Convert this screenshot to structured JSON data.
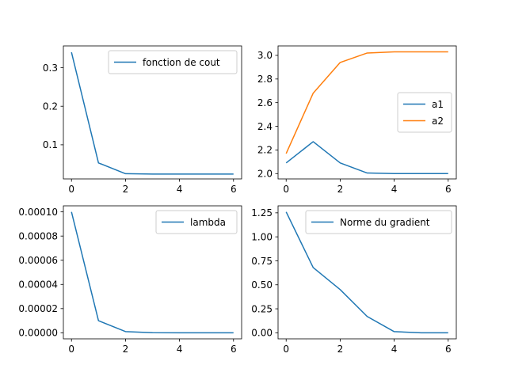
{
  "chart_data": [
    {
      "type": "line",
      "x": [
        0,
        1,
        2,
        3,
        4,
        5,
        6
      ],
      "xticks": [
        "0",
        "2",
        "4",
        "6"
      ],
      "yticks": [
        "0.1",
        "0.2",
        "0.3"
      ],
      "xlim": [
        -0.3,
        6.3
      ],
      "ylim": [
        0.0115,
        0.3565
      ],
      "grid": false,
      "legend_position": "upper-right",
      "series": [
        {
          "name": "fonction de cout",
          "color": "#1f77b4",
          "values": [
            0.34,
            0.053,
            0.025,
            0.024,
            0.024,
            0.024,
            0.024
          ]
        }
      ]
    },
    {
      "type": "line",
      "x": [
        0,
        1,
        2,
        3,
        4,
        5,
        6
      ],
      "xticks": [
        "0",
        "2",
        "4",
        "6"
      ],
      "yticks": [
        "2.0",
        "2.2",
        "2.4",
        "2.6",
        "2.8",
        "3.0"
      ],
      "xlim": [
        -0.3,
        6.3
      ],
      "ylim": [
        1.955,
        3.08
      ],
      "grid": false,
      "legend_position": "center-right",
      "series": [
        {
          "name": "a1",
          "color": "#1f77b4",
          "values": [
            2.09,
            2.27,
            2.09,
            2.005,
            2.0,
            2.0,
            2.0
          ]
        },
        {
          "name": "a2",
          "color": "#ff7f0e",
          "values": [
            2.17,
            2.68,
            2.94,
            3.02,
            3.03,
            3.03,
            3.03
          ]
        }
      ]
    },
    {
      "type": "line",
      "x": [
        0,
        1,
        2,
        3,
        4,
        5,
        6
      ],
      "xticks": [
        "0",
        "2",
        "4",
        "6"
      ],
      "yticks": [
        "0.00000",
        "0.00002",
        "0.00004",
        "0.00006",
        "0.00008",
        "0.00010"
      ],
      "xlim": [
        -0.3,
        6.3
      ],
      "ylim": [
        -5e-06,
        0.000105
      ],
      "grid": false,
      "legend_position": "upper-right",
      "series": [
        {
          "name": "lambda",
          "color": "#1f77b4",
          "values": [
            0.0001,
            1e-05,
            1e-06,
            1e-07,
            1e-08,
            1e-09,
            1e-10
          ]
        }
      ]
    },
    {
      "type": "line",
      "x": [
        0,
        1,
        2,
        3,
        4,
        5,
        6
      ],
      "xticks": [
        "0",
        "2",
        "4",
        "6"
      ],
      "yticks": [
        "0.00",
        "0.25",
        "0.50",
        "0.75",
        "1.00",
        "1.25"
      ],
      "xlim": [
        -0.3,
        6.3
      ],
      "ylim": [
        -0.063,
        1.323
      ],
      "grid": false,
      "legend_position": "upper-right",
      "series": [
        {
          "name": "Norme du gradient",
          "color": "#1f77b4",
          "values": [
            1.26,
            0.68,
            0.45,
            0.17,
            0.012,
            0.0,
            0.0
          ]
        }
      ]
    }
  ]
}
